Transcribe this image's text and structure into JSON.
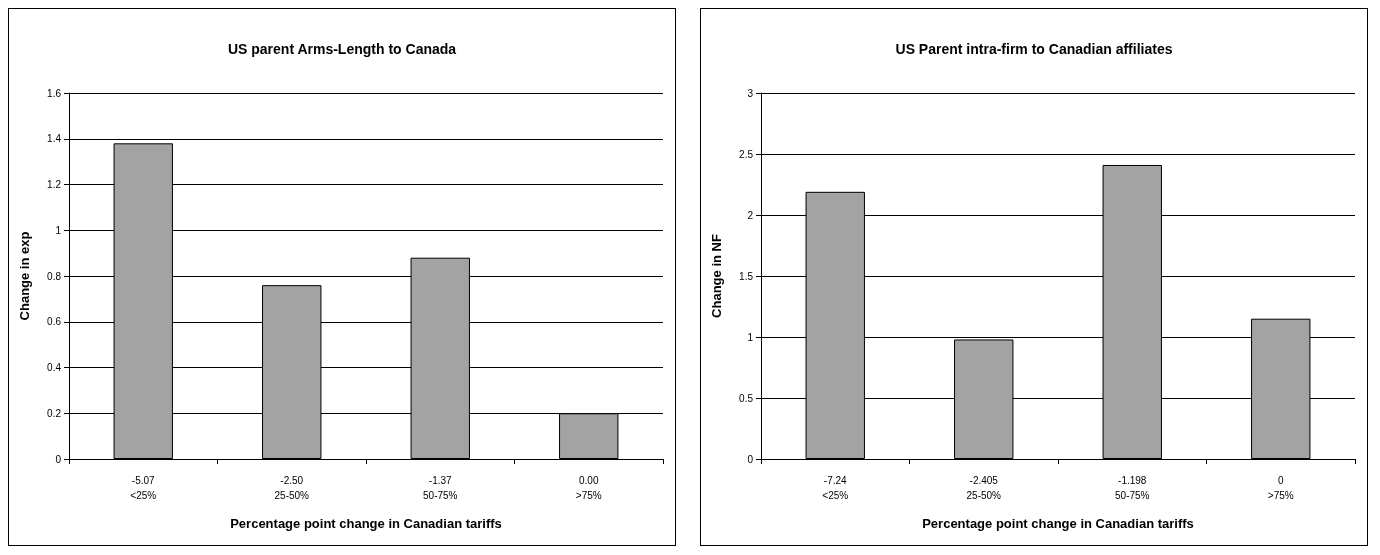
{
  "chart_data": [
    {
      "type": "bar",
      "title": "US parent Arms-Length to Canada",
      "xlabel": "Percentage point change in Canadian tariffs",
      "ylabel": "Change in exp",
      "categories": [
        "-5.07\n<25%",
        "-2.50\n25-50%",
        "-1.37\n50-75%",
        "0.00\n>75%"
      ],
      "values": [
        1.38,
        0.76,
        0.88,
        0.2
      ],
      "color": "#a3a3a3",
      "ylim": [
        0,
        1.6
      ],
      "yticks": [
        0,
        0.2,
        0.4,
        0.6,
        0.8,
        1,
        1.2,
        1.4,
        1.6
      ],
      "grid": "y"
    },
    {
      "type": "bar",
      "title": "US Parent intra-firm to Canadian affiliates",
      "xlabel": "Percentage point change in Canadian tariffs",
      "ylabel": "Change in NF",
      "categories": [
        "-7.24\n<25%",
        "-2.405\n25-50%",
        "-1.198\n50-75%",
        "0\n>75%"
      ],
      "values": [
        2.19,
        0.98,
        2.41,
        1.15
      ],
      "color": "#a3a3a3",
      "ylim": [
        0,
        3
      ],
      "yticks": [
        0,
        0.5,
        1,
        1.5,
        2,
        2.5,
        3
      ],
      "grid": "y"
    }
  ]
}
